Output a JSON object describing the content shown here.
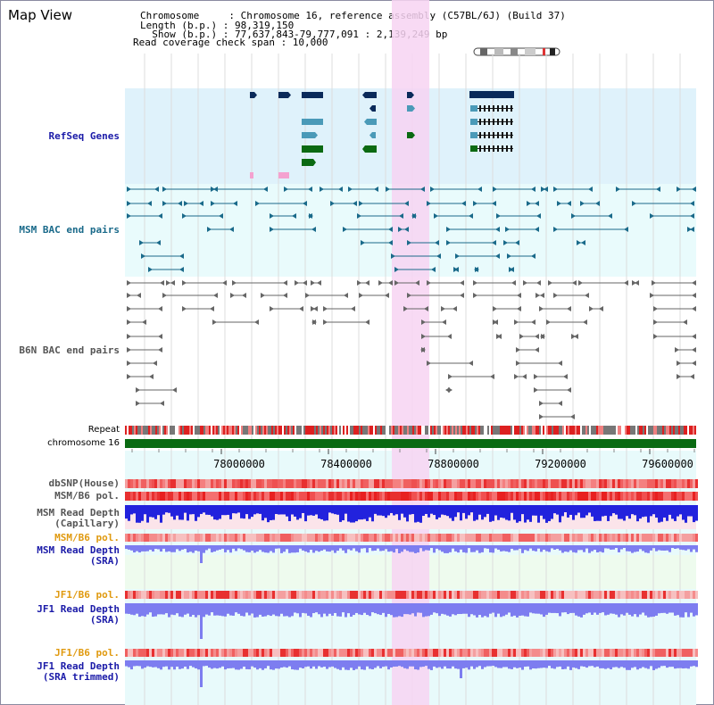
{
  "header": {
    "title": "Map View",
    "info_lines": [
      "Chromosome     : Chromosome 16, reference assembly (C57BL/6J) (Build 37)",
      "Length (b.p.) : 98,319,150",
      "  Show (b.p.) : 77,637,843-79,777,091 : 2,139,249 bp",
      "Read coverage check span : 10,000"
    ]
  },
  "tracks": {
    "refseq": "RefSeq Genes",
    "msm_bac": "MSM BAC end pairs",
    "b6n_bac": "B6N BAC end pairs",
    "repeat": "Repeat",
    "chromosome": "chromosome 16",
    "dbsnp": "dbSNP(House)",
    "msm_pol": "MSM/B6 pol.",
    "msm_depth_cap_1": "MSM Read Depth",
    "msm_depth_cap_2": "(Capillary)",
    "msm_pol2": "MSM/B6 pol.",
    "msm_depth_sra_1": "MSM Read Depth",
    "msm_depth_sra_2": "(SRA)",
    "jf1_pol": "JF1/B6 pol.",
    "jf1_depth_sra_1": "JF1 Read Depth",
    "jf1_depth_sra_2": "(SRA)",
    "jf1_pol2": "JF1/B6 pol.",
    "jf1_depth_trim_1": "JF1 Read Depth",
    "jf1_depth_trim_2": "(SRA trimmed)"
  },
  "axis": {
    "ticks": [
      "78000000",
      "78400000",
      "78800000",
      "79200000",
      "79600000"
    ]
  },
  "colors": {
    "refseq_bg": "#dff2fb",
    "msm_bac_bg": "#e9fbfc",
    "highlight": "#f7d4f2",
    "gene_navy": "#0a2a5a",
    "gene_teal": "#4a9ab8",
    "gene_green": "#0a6a12",
    "gene_pink": "#f4a2d0",
    "msm_bac_line": "#1a6a8a",
    "b6n_line": "#666666",
    "chrom_green": "#0a6a12",
    "snp_red": "#e83030",
    "depth_blue": "#2222dd",
    "sra_blue": "#7d7df0",
    "sra_bg": "#eefbee"
  }
}
